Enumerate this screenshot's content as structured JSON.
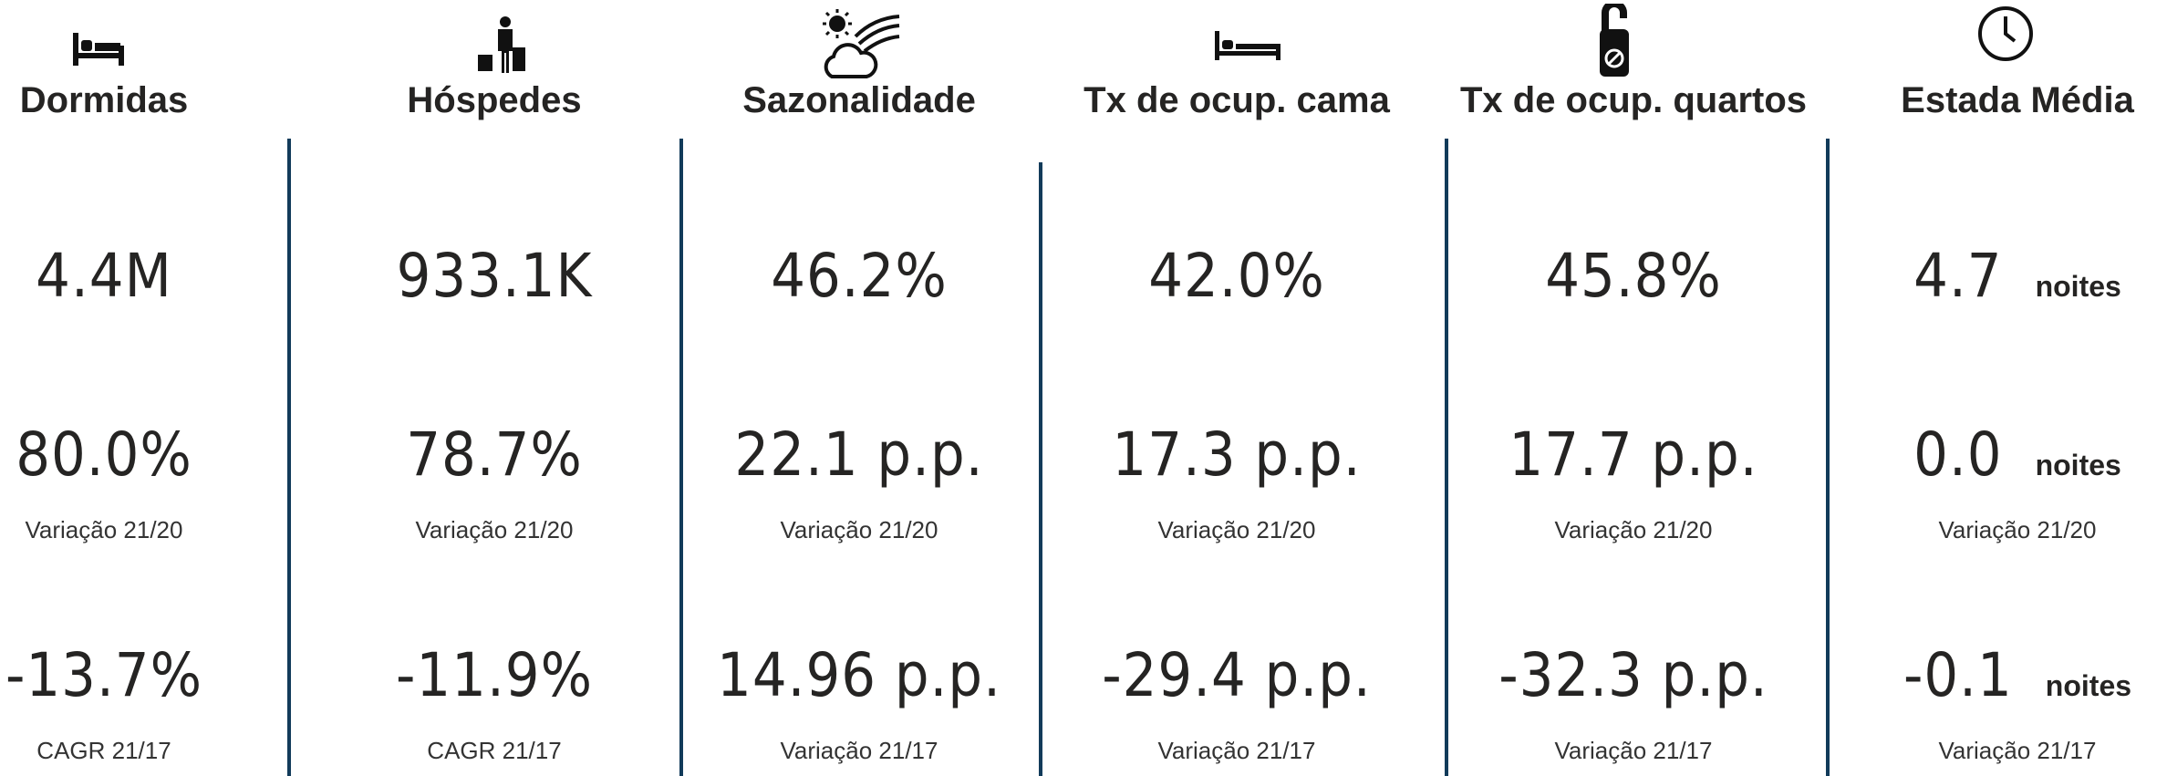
{
  "columns": [
    {
      "title": "Dormidas",
      "value": "4.4M",
      "change": "80.0%",
      "change_label": "Variação 21/20",
      "trend": "-13.7%",
      "trend_label": "CAGR 21/17"
    },
    {
      "title": "Hóspedes",
      "value": "933.1K",
      "change": "78.7%",
      "change_label": "Variação 21/20",
      "trend": "-11.9%",
      "trend_label": "CAGR 21/17"
    },
    {
      "title": "Sazonalidade",
      "value": "46.2%",
      "change": "22.1 p.p.",
      "change_label": "Variação 21/20",
      "trend": "14.96 p.p.",
      "trend_label": "Variação 21/17"
    },
    {
      "title": "Tx de ocup. cama",
      "value": "42.0%",
      "change": "17.3 p.p.",
      "change_label": "Variação 21/20",
      "trend": "-29.4 p.p.",
      "trend_label": "Variação 21/17"
    },
    {
      "title": "Tx de ocup. quartos",
      "value": "45.8%",
      "change": "17.7 p.p.",
      "change_label": "Variação 21/20",
      "trend": "-32.3 p.p.",
      "trend_label": "Variação 21/17"
    },
    {
      "title": "Estada Média",
      "value": "4.7",
      "value_unit": "noites",
      "change": "0.0",
      "change_unit": "noites",
      "change_label": "Variação 21/20",
      "trend": "-0.1",
      "trend_unit": "noites",
      "trend_label": "Variação 21/17"
    }
  ]
}
